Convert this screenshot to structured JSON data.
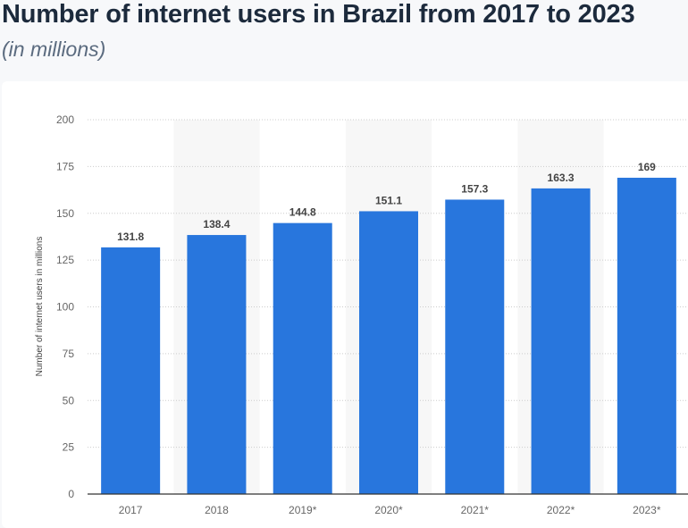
{
  "title": "Number of internet users in Brazil from 2017 to 2023",
  "subtitle": "(in millions)",
  "chart_data": {
    "type": "bar",
    "categories": [
      "2017",
      "2018",
      "2019*",
      "2020*",
      "2021*",
      "2022*",
      "2023*"
    ],
    "values": [
      131.8,
      138.4,
      144.8,
      151.1,
      157.3,
      163.3,
      169
    ],
    "data_labels": [
      "131.8",
      "138.4",
      "144.8",
      "151.1",
      "157.3",
      "163.3",
      "169"
    ],
    "xlabel": "",
    "ylabel": "Number of internet users in millions",
    "ylim": [
      0,
      200
    ],
    "yticks": [
      0,
      25,
      50,
      75,
      100,
      125,
      150,
      175,
      200
    ],
    "grid": true,
    "legend": "none",
    "bar_color": "#2876dd",
    "band_color": "#f7f7f7"
  }
}
